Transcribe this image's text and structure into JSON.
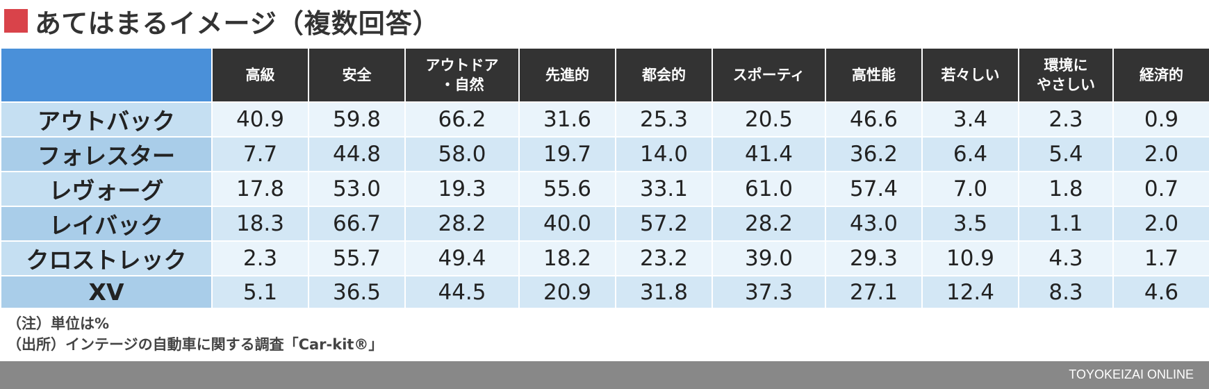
{
  "title": "あてはまるイメージ（複数回答）",
  "colors": {
    "title_square": "#d9434a",
    "corner": "#4a90d9",
    "column_header": "#333333",
    "row_header_a": "#c5dff2",
    "row_header_b": "#a9cde9",
    "row_a": "#eaf4fb",
    "row_b": "#d3e7f5",
    "footer_bar": "#888888"
  },
  "table": {
    "columns": [
      "高級",
      "安全",
      "アウトドア\n・自然",
      "先進的",
      "都会的",
      "スポーティ",
      "高性能",
      "若々しい",
      "環境に\nやさしい",
      "経済的"
    ],
    "rows": [
      {
        "label": "アウトバック",
        "values": [
          "40.9",
          "59.8",
          "66.2",
          "31.6",
          "25.3",
          "20.5",
          "46.6",
          "3.4",
          "2.3",
          "0.9"
        ]
      },
      {
        "label": "フォレスター",
        "values": [
          "7.7",
          "44.8",
          "58.0",
          "19.7",
          "14.0",
          "41.4",
          "36.2",
          "6.4",
          "5.4",
          "2.0"
        ]
      },
      {
        "label": "レヴォーグ",
        "values": [
          "17.8",
          "53.0",
          "19.3",
          "55.6",
          "33.1",
          "61.0",
          "57.4",
          "7.0",
          "1.8",
          "0.7"
        ]
      },
      {
        "label": "レイバック",
        "values": [
          "18.3",
          "66.7",
          "28.2",
          "40.0",
          "57.2",
          "28.2",
          "43.0",
          "3.5",
          "1.1",
          "2.0"
        ]
      },
      {
        "label": "クロストレック",
        "values": [
          "2.3",
          "55.7",
          "49.4",
          "18.2",
          "23.2",
          "39.0",
          "29.3",
          "10.9",
          "4.3",
          "1.7"
        ]
      },
      {
        "label": "XV",
        "values": [
          "5.1",
          "36.5",
          "44.5",
          "20.9",
          "31.8",
          "37.3",
          "27.1",
          "12.4",
          "8.3",
          "4.6"
        ]
      }
    ]
  },
  "notes": {
    "unit": "（注）単位は%",
    "source": "（出所）インテージの自動車に関する調査「Car-kit®」"
  },
  "footer": {
    "credit": "TOYOKEIZAI ONLINE"
  }
}
